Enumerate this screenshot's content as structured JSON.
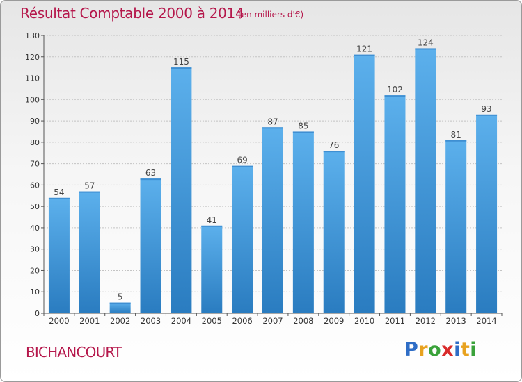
{
  "header": {
    "title": "Résultat Comptable 2000 à 2014",
    "subtitle": "(en milliers d'€)"
  },
  "footer": {
    "commune": "BICHANCOURT",
    "logo_letters": [
      "P",
      "r",
      "o",
      "x",
      "i",
      "t",
      "i"
    ],
    "logo_colors": [
      "#2e6dc6",
      "#e8a21f",
      "#3aa23a",
      "#d92a2a",
      "#2e6dc6",
      "#e8a21f",
      "#3aa23a"
    ]
  },
  "chart_data": {
    "type": "bar",
    "title": "Résultat Comptable 2000 à 2014",
    "subtitle": "(en milliers d'€)",
    "categories": [
      "2000",
      "2001",
      "2002",
      "2003",
      "2004",
      "2005",
      "2006",
      "2007",
      "2008",
      "2009",
      "2010",
      "2011",
      "2012",
      "2013",
      "2014"
    ],
    "values": [
      54,
      57,
      5,
      63,
      115,
      41,
      69,
      87,
      85,
      76,
      121,
      102,
      124,
      81,
      93
    ],
    "ylim": [
      0,
      130
    ],
    "yticks": [
      0,
      10,
      20,
      30,
      40,
      50,
      60,
      70,
      80,
      90,
      100,
      110,
      120,
      130
    ],
    "grid": true,
    "bar_color": "#4fa3e3",
    "xlabel": "",
    "ylabel": ""
  }
}
